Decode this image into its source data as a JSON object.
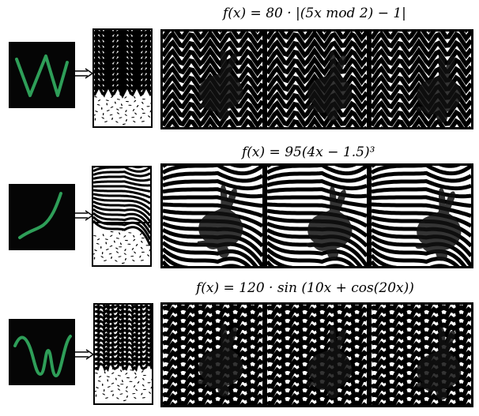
{
  "rows": [
    {
      "formula": "f(x) = 80 · |(5x mod 2) − 1|",
      "wave": "zigzag",
      "curve_color": "#2e9e58",
      "panel_count": 3
    },
    {
      "formula": "f(x) =  95(4x − 1.5)³",
      "wave": "cubic",
      "curve_color": "#2e9e58",
      "panel_count": 3
    },
    {
      "formula": "f(x) = 120 · sin (10x + cos(20x))",
      "wave": "sine",
      "curve_color": "#2e9e58",
      "panel_count": 3
    }
  ],
  "icons": {
    "arrow": "double-arrow-right-icon",
    "subject": "rabbit-silhouette-icon"
  }
}
